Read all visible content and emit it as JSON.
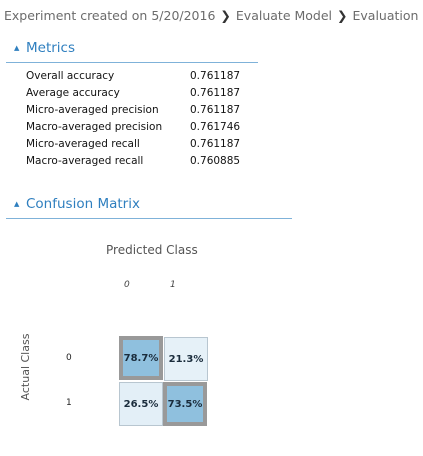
{
  "breadcrumb": {
    "items": [
      "Experiment created on 5/20/2016",
      "Evaluate Model",
      "Evaluation results"
    ],
    "separator": "❯"
  },
  "metrics": {
    "header": "Metrics",
    "rows": [
      {
        "name": "Overall accuracy",
        "value": "0.761187"
      },
      {
        "name": "Average accuracy",
        "value": "0.761187"
      },
      {
        "name": "Micro-averaged precision",
        "value": "0.761187"
      },
      {
        "name": "Macro-averaged precision",
        "value": "0.761746"
      },
      {
        "name": "Micro-averaged recall",
        "value": "0.761187"
      },
      {
        "name": "Macro-averaged recall",
        "value": "0.760885"
      }
    ]
  },
  "confusion": {
    "header": "Confusion Matrix",
    "predicted_label": "Predicted Class",
    "actual_label": "Actual Class",
    "classes": [
      "0",
      "1"
    ],
    "cells": [
      [
        {
          "text": "78.7%",
          "color": "#8fc0de"
        },
        {
          "text": "21.3%",
          "color": "#e6f1f8"
        }
      ],
      [
        {
          "text": "26.5%",
          "color": "#e3eff7"
        },
        {
          "text": "73.5%",
          "color": "#8fc0de"
        }
      ]
    ]
  },
  "colors": {
    "accent": "#2f7fbf",
    "diagonal_border": "#999999"
  }
}
